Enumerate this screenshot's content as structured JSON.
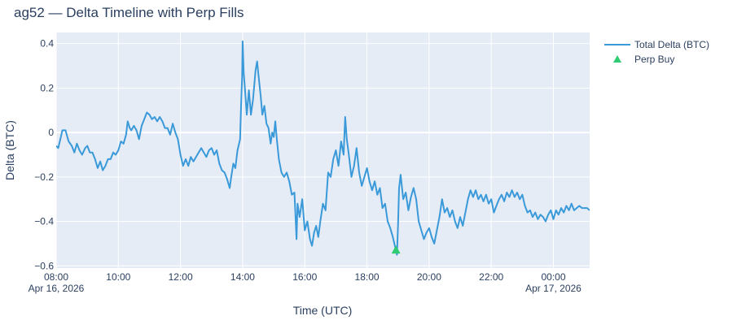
{
  "chart_data": {
    "type": "line",
    "title": "ag52 — Delta Timeline with Perp Fills",
    "xlabel": "Time (UTC)",
    "ylabel": "Delta (BTC)",
    "x_range": [
      "2026-04-16 08:00",
      "2026-04-17 01:10"
    ],
    "ylim": [
      -0.61,
      0.45
    ],
    "x_ticks": [
      {
        "t": "2026-04-16 08:00",
        "label": "08:00",
        "sublabel": "Apr 16, 2026"
      },
      {
        "t": "2026-04-16 10:00",
        "label": "10:00",
        "sublabel": ""
      },
      {
        "t": "2026-04-16 12:00",
        "label": "12:00",
        "sublabel": ""
      },
      {
        "t": "2026-04-16 14:00",
        "label": "14:00",
        "sublabel": ""
      },
      {
        "t": "2026-04-16 16:00",
        "label": "16:00",
        "sublabel": ""
      },
      {
        "t": "2026-04-16 18:00",
        "label": "18:00",
        "sublabel": ""
      },
      {
        "t": "2026-04-16 20:00",
        "label": "20:00",
        "sublabel": ""
      },
      {
        "t": "2026-04-16 22:00",
        "label": "22:00",
        "sublabel": ""
      },
      {
        "t": "2026-04-17 00:00",
        "label": "00:00",
        "sublabel": "Apr 17, 2026"
      }
    ],
    "y_ticks": [
      {
        "v": 0.4,
        "label": "0.4"
      },
      {
        "v": 0.2,
        "label": "0.2"
      },
      {
        "v": 0,
        "label": "0"
      },
      {
        "v": -0.2,
        "label": "−0.2"
      },
      {
        "v": -0.4,
        "label": "−0.4"
      },
      {
        "v": -0.6,
        "label": "−0.6"
      }
    ],
    "grid": true,
    "legend_position": "top-right",
    "series": [
      {
        "name": "Total Delta (BTC)",
        "mode": "line",
        "color": "#3a99d9",
        "points": [
          [
            "2026-04-16 08:00",
            -0.06
          ],
          [
            "2026-04-16 08:04",
            -0.07
          ],
          [
            "2026-04-16 08:08",
            -0.03
          ],
          [
            "2026-04-16 08:12",
            0.01
          ],
          [
            "2026-04-16 08:18",
            0.01
          ],
          [
            "2026-04-16 08:24",
            -0.04
          ],
          [
            "2026-04-16 08:30",
            -0.06
          ],
          [
            "2026-04-16 08:35",
            -0.09
          ],
          [
            "2026-04-16 08:40",
            -0.05
          ],
          [
            "2026-04-16 08:45",
            -0.08
          ],
          [
            "2026-04-16 08:50",
            -0.1
          ],
          [
            "2026-04-16 08:56",
            -0.07
          ],
          [
            "2026-04-16 09:00",
            -0.06
          ],
          [
            "2026-04-16 09:05",
            -0.09
          ],
          [
            "2026-04-16 09:10",
            -0.09
          ],
          [
            "2026-04-16 09:15",
            -0.12
          ],
          [
            "2026-04-16 09:20",
            -0.16
          ],
          [
            "2026-04-16 09:25",
            -0.13
          ],
          [
            "2026-04-16 09:30",
            -0.17
          ],
          [
            "2026-04-16 09:35",
            -0.15
          ],
          [
            "2026-04-16 09:40",
            -0.12
          ],
          [
            "2026-04-16 09:45",
            -0.12
          ],
          [
            "2026-04-16 09:50",
            -0.09
          ],
          [
            "2026-04-16 09:55",
            -0.1
          ],
          [
            "2026-04-16 10:00",
            -0.08
          ],
          [
            "2026-04-16 10:05",
            -0.04
          ],
          [
            "2026-04-16 10:10",
            -0.05
          ],
          [
            "2026-04-16 10:15",
            -0.01
          ],
          [
            "2026-04-16 10:18",
            0.05
          ],
          [
            "2026-04-16 10:22",
            0.02
          ],
          [
            "2026-04-16 10:25",
            0.01
          ],
          [
            "2026-04-16 10:30",
            0.03
          ],
          [
            "2026-04-16 10:35",
            0.01
          ],
          [
            "2026-04-16 10:40",
            -0.03
          ],
          [
            "2026-04-16 10:45",
            0.03
          ],
          [
            "2026-04-16 10:50",
            0.06
          ],
          [
            "2026-04-16 10:55",
            0.09
          ],
          [
            "2026-04-16 11:00",
            0.08
          ],
          [
            "2026-04-16 11:05",
            0.06
          ],
          [
            "2026-04-16 11:10",
            0.07
          ],
          [
            "2026-04-16 11:15",
            0.05
          ],
          [
            "2026-04-16 11:20",
            0.07
          ],
          [
            "2026-04-16 11:25",
            0.05
          ],
          [
            "2026-04-16 11:30",
            0.02
          ],
          [
            "2026-04-16 11:35",
            0.02
          ],
          [
            "2026-04-16 11:40",
            -0.01
          ],
          [
            "2026-04-16 11:45",
            0.04
          ],
          [
            "2026-04-16 11:50",
            0.0
          ],
          [
            "2026-04-16 11:55",
            -0.03
          ],
          [
            "2026-04-16 12:00",
            -0.1
          ],
          [
            "2026-04-16 12:05",
            -0.15
          ],
          [
            "2026-04-16 12:10",
            -0.12
          ],
          [
            "2026-04-16 12:15",
            -0.15
          ],
          [
            "2026-04-16 12:20",
            -0.11
          ],
          [
            "2026-04-16 12:25",
            -0.13
          ],
          [
            "2026-04-16 12:30",
            -0.11
          ],
          [
            "2026-04-16 12:35",
            -0.09
          ],
          [
            "2026-04-16 12:40",
            -0.07
          ],
          [
            "2026-04-16 12:45",
            -0.09
          ],
          [
            "2026-04-16 12:50",
            -0.11
          ],
          [
            "2026-04-16 12:55",
            -0.08
          ],
          [
            "2026-04-16 13:00",
            -0.07
          ],
          [
            "2026-04-16 13:05",
            -0.1
          ],
          [
            "2026-04-16 13:10",
            -0.08
          ],
          [
            "2026-04-16 13:15",
            -0.14
          ],
          [
            "2026-04-16 13:20",
            -0.17
          ],
          [
            "2026-04-16 13:25",
            -0.18
          ],
          [
            "2026-04-16 13:30",
            -0.21
          ],
          [
            "2026-04-16 13:35",
            -0.25
          ],
          [
            "2026-04-16 13:38",
            -0.2
          ],
          [
            "2026-04-16 13:42",
            -0.14
          ],
          [
            "2026-04-16 13:46",
            -0.16
          ],
          [
            "2026-04-16 13:50",
            -0.08
          ],
          [
            "2026-04-16 13:55",
            -0.03
          ],
          [
            "2026-04-16 13:57",
            0.12
          ],
          [
            "2026-04-16 13:59",
            0.25
          ],
          [
            "2026-04-16 14:00",
            0.41
          ],
          [
            "2026-04-16 14:02",
            0.27
          ],
          [
            "2026-04-16 14:05",
            0.18
          ],
          [
            "2026-04-16 14:08",
            0.08
          ],
          [
            "2026-04-16 14:12",
            0.19
          ],
          [
            "2026-04-16 14:16",
            0.08
          ],
          [
            "2026-04-16 14:20",
            0.15
          ],
          [
            "2026-04-16 14:25",
            0.28
          ],
          [
            "2026-04-16 14:28",
            0.32
          ],
          [
            "2026-04-16 14:31",
            0.25
          ],
          [
            "2026-04-16 14:35",
            0.16
          ],
          [
            "2026-04-16 14:38",
            0.08
          ],
          [
            "2026-04-16 14:42",
            0.12
          ],
          [
            "2026-04-16 14:46",
            0.04
          ],
          [
            "2026-04-16 14:50",
            0.02
          ],
          [
            "2026-04-16 14:54",
            -0.05
          ],
          [
            "2026-04-16 14:57",
            0.0
          ],
          [
            "2026-04-16 15:00",
            -0.02
          ],
          [
            "2026-04-16 15:03",
            0.05
          ],
          [
            "2026-04-16 15:06",
            -0.03
          ],
          [
            "2026-04-16 15:10",
            -0.12
          ],
          [
            "2026-04-16 15:15",
            -0.18
          ],
          [
            "2026-04-16 15:20",
            -0.2
          ],
          [
            "2026-04-16 15:25",
            -0.18
          ],
          [
            "2026-04-16 15:30",
            -0.22
          ],
          [
            "2026-04-16 15:35",
            -0.28
          ],
          [
            "2026-04-16 15:40",
            -0.27
          ],
          [
            "2026-04-16 15:44",
            -0.48
          ],
          [
            "2026-04-16 15:46",
            -0.32
          ],
          [
            "2026-04-16 15:50",
            -0.38
          ],
          [
            "2026-04-16 15:55",
            -0.3
          ],
          [
            "2026-04-16 16:00",
            -0.44
          ],
          [
            "2026-04-16 16:05",
            -0.4
          ],
          [
            "2026-04-16 16:10",
            -0.48
          ],
          [
            "2026-04-16 16:14",
            -0.51
          ],
          [
            "2026-04-16 16:18",
            -0.45
          ],
          [
            "2026-04-16 16:22",
            -0.42
          ],
          [
            "2026-04-16 16:26",
            -0.47
          ],
          [
            "2026-04-16 16:30",
            -0.4
          ],
          [
            "2026-04-16 16:35",
            -0.32
          ],
          [
            "2026-04-16 16:40",
            -0.35
          ],
          [
            "2026-04-16 16:45",
            -0.18
          ],
          [
            "2026-04-16 16:50",
            -0.2
          ],
          [
            "2026-04-16 16:55",
            -0.12
          ],
          [
            "2026-04-16 17:00",
            -0.08
          ],
          [
            "2026-04-16 17:05",
            -0.15
          ],
          [
            "2026-04-16 17:10",
            -0.04
          ],
          [
            "2026-04-16 17:15",
            -0.1
          ],
          [
            "2026-04-16 17:18",
            0.07
          ],
          [
            "2026-04-16 17:21",
            -0.03
          ],
          [
            "2026-04-16 17:25",
            -0.1
          ],
          [
            "2026-04-16 17:30",
            -0.2
          ],
          [
            "2026-04-16 17:35",
            -0.15
          ],
          [
            "2026-04-16 17:40",
            -0.07
          ],
          [
            "2026-04-16 17:45",
            -0.18
          ],
          [
            "2026-04-16 17:50",
            -0.24
          ],
          [
            "2026-04-16 17:55",
            -0.2
          ],
          [
            "2026-04-16 18:00",
            -0.16
          ],
          [
            "2026-04-16 18:05",
            -0.22
          ],
          [
            "2026-04-16 18:10",
            -0.26
          ],
          [
            "2026-04-16 18:15",
            -0.22
          ],
          [
            "2026-04-16 18:20",
            -0.28
          ],
          [
            "2026-04-16 18:25",
            -0.25
          ],
          [
            "2026-04-16 18:30",
            -0.34
          ],
          [
            "2026-04-16 18:35",
            -0.32
          ],
          [
            "2026-04-16 18:40",
            -0.4
          ],
          [
            "2026-04-16 18:45",
            -0.43
          ],
          [
            "2026-04-16 18:50",
            -0.47
          ],
          [
            "2026-04-16 18:55",
            -0.52
          ],
          [
            "2026-04-16 18:58",
            -0.55
          ],
          [
            "2026-04-16 19:00",
            -0.42
          ],
          [
            "2026-04-16 19:02",
            -0.25
          ],
          [
            "2026-04-16 19:05",
            -0.19
          ],
          [
            "2026-04-16 19:10",
            -0.3
          ],
          [
            "2026-04-16 19:15",
            -0.27
          ],
          [
            "2026-04-16 19:20",
            -0.35
          ],
          [
            "2026-04-16 19:25",
            -0.29
          ],
          [
            "2026-04-16 19:30",
            -0.25
          ],
          [
            "2026-04-16 19:35",
            -0.3
          ],
          [
            "2026-04-16 19:40",
            -0.4
          ],
          [
            "2026-04-16 19:45",
            -0.44
          ],
          [
            "2026-04-16 19:50",
            -0.48
          ],
          [
            "2026-04-16 19:55",
            -0.45
          ],
          [
            "2026-04-16 20:00",
            -0.43
          ],
          [
            "2026-04-16 20:05",
            -0.47
          ],
          [
            "2026-04-16 20:10",
            -0.5
          ],
          [
            "2026-04-16 20:15",
            -0.44
          ],
          [
            "2026-04-16 20:20",
            -0.38
          ],
          [
            "2026-04-16 20:25",
            -0.3
          ],
          [
            "2026-04-16 20:30",
            -0.36
          ],
          [
            "2026-04-16 20:35",
            -0.34
          ],
          [
            "2026-04-16 20:40",
            -0.38
          ],
          [
            "2026-04-16 20:45",
            -0.35
          ],
          [
            "2026-04-16 20:50",
            -0.4
          ],
          [
            "2026-04-16 20:55",
            -0.43
          ],
          [
            "2026-04-16 21:00",
            -0.38
          ],
          [
            "2026-04-16 21:05",
            -0.42
          ],
          [
            "2026-04-16 21:10",
            -0.36
          ],
          [
            "2026-04-16 21:15",
            -0.3
          ],
          [
            "2026-04-16 21:20",
            -0.26
          ],
          [
            "2026-04-16 21:25",
            -0.29
          ],
          [
            "2026-04-16 21:30",
            -0.26
          ],
          [
            "2026-04-16 21:35",
            -0.3
          ],
          [
            "2026-04-16 21:40",
            -0.28
          ],
          [
            "2026-04-16 21:45",
            -0.31
          ],
          [
            "2026-04-16 21:50",
            -0.28
          ],
          [
            "2026-04-16 21:55",
            -0.32
          ],
          [
            "2026-04-16 22:00",
            -0.3
          ],
          [
            "2026-04-16 22:05",
            -0.36
          ],
          [
            "2026-04-16 22:10",
            -0.33
          ],
          [
            "2026-04-16 22:15",
            -0.3
          ],
          [
            "2026-04-16 22:20",
            -0.28
          ],
          [
            "2026-04-16 22:25",
            -0.31
          ],
          [
            "2026-04-16 22:30",
            -0.27
          ],
          [
            "2026-04-16 22:35",
            -0.29
          ],
          [
            "2026-04-16 22:40",
            -0.26
          ],
          [
            "2026-04-16 22:45",
            -0.29
          ],
          [
            "2026-04-16 22:50",
            -0.27
          ],
          [
            "2026-04-16 22:55",
            -0.3
          ],
          [
            "2026-04-16 23:00",
            -0.28
          ],
          [
            "2026-04-16 23:05",
            -0.33
          ],
          [
            "2026-04-16 23:10",
            -0.36
          ],
          [
            "2026-04-16 23:15",
            -0.35
          ],
          [
            "2026-04-16 23:20",
            -0.38
          ],
          [
            "2026-04-16 23:25",
            -0.36
          ],
          [
            "2026-04-16 23:30",
            -0.39
          ],
          [
            "2026-04-16 23:35",
            -0.37
          ],
          [
            "2026-04-16 23:40",
            -0.38
          ],
          [
            "2026-04-16 23:45",
            -0.4
          ],
          [
            "2026-04-16 23:50",
            -0.37
          ],
          [
            "2026-04-16 23:55",
            -0.35
          ],
          [
            "2026-04-17 00:00",
            -0.39
          ],
          [
            "2026-04-17 00:05",
            -0.35
          ],
          [
            "2026-04-17 00:10",
            -0.37
          ],
          [
            "2026-04-17 00:15",
            -0.34
          ],
          [
            "2026-04-17 00:20",
            -0.36
          ],
          [
            "2026-04-17 00:25",
            -0.33
          ],
          [
            "2026-04-17 00:30",
            -0.35
          ],
          [
            "2026-04-17 00:35",
            -0.32
          ],
          [
            "2026-04-17 00:40",
            -0.35
          ],
          [
            "2026-04-17 00:45",
            -0.34
          ],
          [
            "2026-04-17 00:50",
            -0.33
          ],
          [
            "2026-04-17 00:55",
            -0.34
          ],
          [
            "2026-04-17 01:00",
            -0.34
          ],
          [
            "2026-04-17 01:05",
            -0.34
          ],
          [
            "2026-04-17 01:10",
            -0.35
          ]
        ]
      },
      {
        "name": "Perp Buy",
        "mode": "markers",
        "marker": "triangle-up",
        "color": "#2ecc71",
        "points": [
          [
            "2026-04-16 18:56",
            -0.53
          ]
        ]
      }
    ]
  }
}
